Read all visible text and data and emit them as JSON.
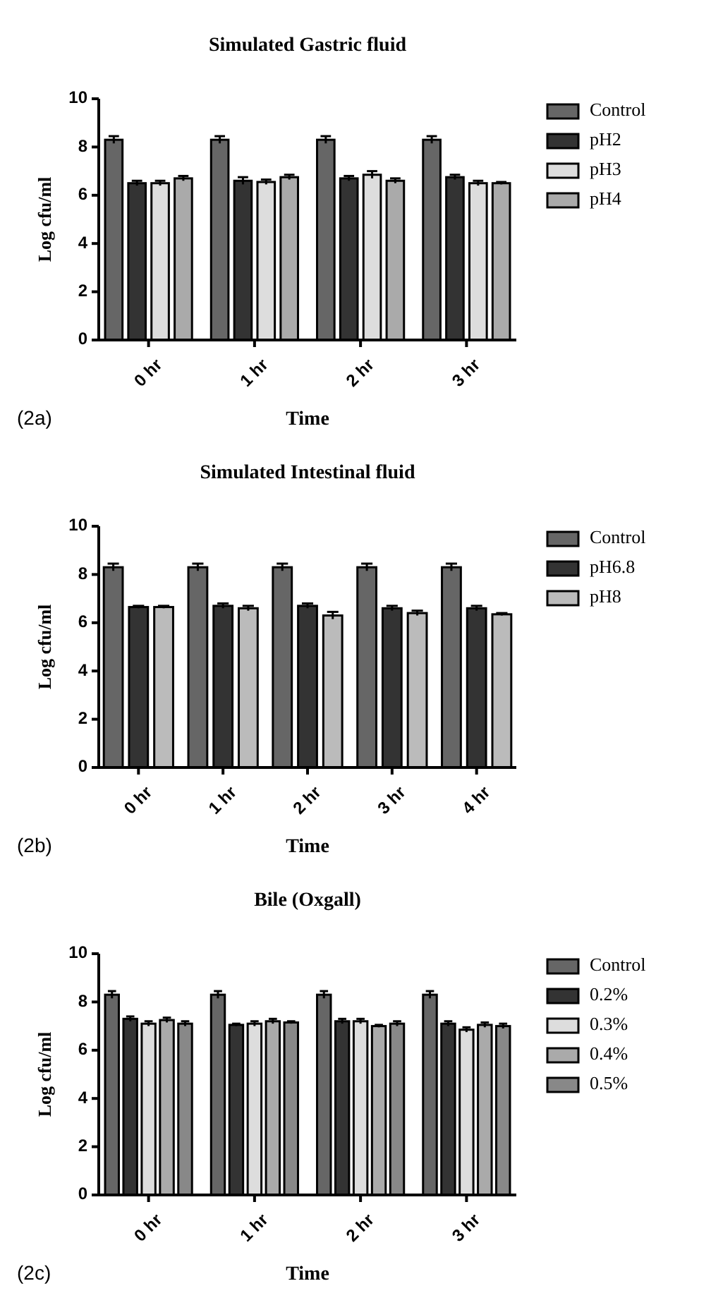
{
  "chart_data": [
    {
      "type": "bar",
      "title": "Simulated Gastric fluid",
      "xlabel": "Time",
      "ylabel": "Log cfu/ml",
      "categories": [
        "0 hr",
        "1 hr",
        "2 hr",
        "3 hr"
      ],
      "ylim": [
        0,
        10
      ],
      "yticks": [
        0,
        2,
        4,
        6,
        8,
        10
      ],
      "legend": "right",
      "annotations": [
        "(2a)"
      ],
      "series": [
        {
          "name": "Control",
          "color": "#666666",
          "values": [
            8.3,
            8.3,
            8.3,
            8.3
          ],
          "errors": [
            0.15,
            0.15,
            0.15,
            0.15
          ]
        },
        {
          "name": "pH2",
          "color": "#333333",
          "values": [
            6.5,
            6.6,
            6.7,
            6.75
          ],
          "errors": [
            0.1,
            0.15,
            0.1,
            0.1
          ]
        },
        {
          "name": "pH3",
          "color": "#dddddd",
          "values": [
            6.5,
            6.55,
            6.85,
            6.5
          ],
          "errors": [
            0.1,
            0.1,
            0.15,
            0.1
          ]
        },
        {
          "name": "pH4",
          "color": "#aaaaaa",
          "values": [
            6.7,
            6.75,
            6.6,
            6.5
          ],
          "errors": [
            0.1,
            0.1,
            0.1,
            0.05
          ]
        }
      ]
    },
    {
      "type": "bar",
      "title": "Simulated Intestinal fluid",
      "xlabel": "Time",
      "ylabel": "Log cfu/ml",
      "categories": [
        "0 hr",
        "1 hr",
        "2 hr",
        "3 hr",
        "4 hr"
      ],
      "ylim": [
        0,
        10
      ],
      "yticks": [
        0,
        2,
        4,
        6,
        8,
        10
      ],
      "legend": "right",
      "annotations": [
        "(2b)"
      ],
      "series": [
        {
          "name": "Control",
          "color": "#666666",
          "values": [
            8.3,
            8.3,
            8.3,
            8.3,
            8.3
          ],
          "errors": [
            0.15,
            0.15,
            0.15,
            0.15,
            0.15
          ]
        },
        {
          "name": "pH6.8",
          "color": "#333333",
          "values": [
            6.65,
            6.7,
            6.7,
            6.6,
            6.6
          ],
          "errors": [
            0.05,
            0.1,
            0.1,
            0.1,
            0.1
          ]
        },
        {
          "name": "pH8",
          "color": "#bbbbbb",
          "values": [
            6.65,
            6.6,
            6.3,
            6.4,
            6.35
          ],
          "errors": [
            0.05,
            0.1,
            0.15,
            0.1,
            0.05
          ]
        }
      ]
    },
    {
      "type": "bar",
      "title": "Bile (Oxgall)",
      "xlabel": "Time",
      "ylabel": "Log cfu/ml",
      "categories": [
        "0 hr",
        "1 hr",
        "2 hr",
        "3 hr"
      ],
      "ylim": [
        0,
        10
      ],
      "yticks": [
        0,
        2,
        4,
        6,
        8,
        10
      ],
      "legend": "right",
      "annotations": [
        "(2c)"
      ],
      "series": [
        {
          "name": "Control",
          "color": "#666666",
          "values": [
            8.3,
            8.3,
            8.3,
            8.3
          ],
          "errors": [
            0.15,
            0.15,
            0.15,
            0.15
          ]
        },
        {
          "name": "0.2%",
          "color": "#333333",
          "values": [
            7.3,
            7.05,
            7.2,
            7.1
          ],
          "errors": [
            0.1,
            0.05,
            0.1,
            0.1
          ]
        },
        {
          "name": "0.3%",
          "color": "#dddddd",
          "values": [
            7.1,
            7.1,
            7.2,
            6.85
          ],
          "errors": [
            0.1,
            0.1,
            0.1,
            0.1
          ]
        },
        {
          "name": "0.4%",
          "color": "#aaaaaa",
          "values": [
            7.25,
            7.2,
            7.0,
            7.05
          ],
          "errors": [
            0.1,
            0.1,
            0.05,
            0.1
          ]
        },
        {
          "name": "0.5%",
          "color": "#888888",
          "values": [
            7.1,
            7.15,
            7.1,
            7.0
          ],
          "errors": [
            0.1,
            0.05,
            0.1,
            0.1
          ]
        }
      ]
    }
  ]
}
